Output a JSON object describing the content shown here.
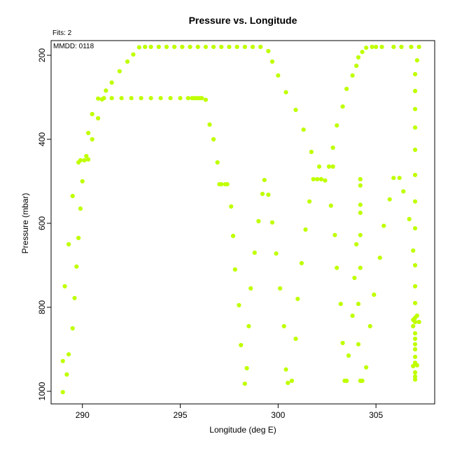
{
  "chart_data": {
    "type": "scatter",
    "title": "Pressure vs. Longitude",
    "xlabel": "Longitude (deg E)",
    "ylabel": "Pressure (mbar)",
    "annotations": [
      "Fits: 2",
      "MMDD: 0118"
    ],
    "xlim": [
      288.4,
      308.0
    ],
    "ylim": [
      1030,
      165
    ],
    "y_reversed": true,
    "x_ticks": [
      290,
      295,
      300,
      305
    ],
    "y_ticks": [
      200,
      400,
      600,
      800,
      1000
    ],
    "point_color": "#bfff00",
    "grid": false,
    "series": [
      {
        "values": [
          [
            289.0,
            1002
          ],
          [
            289.0,
            928
          ],
          [
            289.1,
            750
          ],
          [
            289.2,
            960
          ],
          [
            289.3,
            650
          ],
          [
            289.3,
            912
          ],
          [
            289.5,
            535
          ],
          [
            289.5,
            850
          ],
          [
            289.6,
            778
          ],
          [
            289.7,
            703
          ],
          [
            289.8,
            455
          ],
          [
            289.8,
            635
          ],
          [
            289.9,
            565
          ],
          [
            289.9,
            450
          ],
          [
            290.0,
            500
          ],
          [
            290.1,
            450
          ],
          [
            290.2,
            440
          ],
          [
            290.3,
            385
          ],
          [
            290.3,
            448
          ],
          [
            290.5,
            340
          ],
          [
            290.5,
            400
          ],
          [
            290.8,
            303
          ],
          [
            290.8,
            350
          ],
          [
            291.0,
            305
          ],
          [
            291.1,
            302
          ],
          [
            291.2,
            284
          ],
          [
            291.5,
            265
          ],
          [
            291.5,
            302
          ],
          [
            291.9,
            238
          ],
          [
            292.0,
            302
          ],
          [
            292.3,
            215
          ],
          [
            292.5,
            302
          ],
          [
            292.6,
            198
          ],
          [
            292.9,
            181
          ],
          [
            293.0,
            302
          ],
          [
            293.2,
            180
          ],
          [
            293.5,
            180
          ],
          [
            293.5,
            302
          ],
          [
            293.9,
            180
          ],
          [
            294.0,
            302
          ],
          [
            294.3,
            180
          ],
          [
            294.5,
            302
          ],
          [
            294.7,
            180
          ],
          [
            295.0,
            302
          ],
          [
            295.1,
            180
          ],
          [
            295.4,
            302
          ],
          [
            295.5,
            180
          ],
          [
            295.6,
            302
          ],
          [
            295.7,
            302
          ],
          [
            295.8,
            302
          ],
          [
            295.9,
            302
          ],
          [
            295.9,
            180
          ],
          [
            296.0,
            302
          ],
          [
            296.1,
            302
          ],
          [
            296.3,
            180
          ],
          [
            296.3,
            306
          ],
          [
            296.5,
            365
          ],
          [
            296.7,
            180
          ],
          [
            296.7,
            400
          ],
          [
            296.9,
            455
          ],
          [
            297.0,
            507
          ],
          [
            297.1,
            180
          ],
          [
            297.1,
            507
          ],
          [
            297.3,
            507
          ],
          [
            297.4,
            507
          ],
          [
            297.5,
            180
          ],
          [
            297.6,
            560
          ],
          [
            297.7,
            630
          ],
          [
            297.8,
            710
          ],
          [
            297.9,
            180
          ],
          [
            298.0,
            795
          ],
          [
            298.1,
            890
          ],
          [
            298.3,
            180
          ],
          [
            298.3,
            982
          ],
          [
            298.4,
            945
          ],
          [
            298.5,
            845
          ],
          [
            298.6,
            755
          ],
          [
            298.7,
            180
          ],
          [
            298.8,
            670
          ],
          [
            299.0,
            595
          ],
          [
            299.1,
            180
          ],
          [
            299.2,
            530
          ],
          [
            299.3,
            497
          ],
          [
            299.5,
            532
          ],
          [
            299.5,
            190
          ],
          [
            299.7,
            215
          ],
          [
            299.7,
            598
          ],
          [
            299.9,
            672
          ],
          [
            300.0,
            248
          ],
          [
            300.1,
            755
          ],
          [
            300.3,
            845
          ],
          [
            300.4,
            948
          ],
          [
            300.4,
            288
          ],
          [
            300.5,
            980
          ],
          [
            300.7,
            975
          ],
          [
            300.9,
            875
          ],
          [
            300.9,
            330
          ],
          [
            301.0,
            780
          ],
          [
            301.2,
            695
          ],
          [
            301.3,
            377
          ],
          [
            301.4,
            615
          ],
          [
            301.6,
            548
          ],
          [
            301.7,
            430
          ],
          [
            301.8,
            495
          ],
          [
            302.0,
            495
          ],
          [
            302.1,
            465
          ],
          [
            302.2,
            495
          ],
          [
            302.4,
            498
          ],
          [
            302.6,
            465
          ],
          [
            302.7,
            558
          ],
          [
            302.8,
            420
          ],
          [
            302.8,
            465
          ],
          [
            302.9,
            628
          ],
          [
            303.0,
            706
          ],
          [
            303.0,
            367
          ],
          [
            303.2,
            792
          ],
          [
            303.3,
            885
          ],
          [
            303.3,
            322
          ],
          [
            303.4,
            975
          ],
          [
            303.5,
            975
          ],
          [
            303.5,
            280
          ],
          [
            303.6,
            915
          ],
          [
            303.8,
            820
          ],
          [
            303.8,
            248
          ],
          [
            303.9,
            730
          ],
          [
            304.0,
            650
          ],
          [
            304.0,
            225
          ],
          [
            304.1,
            888
          ],
          [
            304.1,
            792
          ],
          [
            304.2,
            975
          ],
          [
            304.2,
            706
          ],
          [
            304.2,
            628
          ],
          [
            304.2,
            575
          ],
          [
            304.2,
            556
          ],
          [
            304.2,
            510
          ],
          [
            304.2,
            495
          ],
          [
            304.1,
            205
          ],
          [
            304.3,
            192
          ],
          [
            304.3,
            975
          ],
          [
            304.5,
            943
          ],
          [
            304.5,
            182
          ],
          [
            304.7,
            845
          ],
          [
            304.8,
            180
          ],
          [
            304.9,
            770
          ],
          [
            305.0,
            180
          ],
          [
            305.2,
            682
          ],
          [
            305.3,
            180
          ],
          [
            305.4,
            606
          ],
          [
            305.7,
            543
          ],
          [
            305.9,
            492
          ],
          [
            305.9,
            180
          ],
          [
            306.2,
            492
          ],
          [
            306.3,
            180
          ],
          [
            306.4,
            524
          ],
          [
            306.7,
            590
          ],
          [
            306.8,
            180
          ],
          [
            306.9,
            665
          ],
          [
            306.9,
            845
          ],
          [
            307.0,
            612
          ],
          [
            307.0,
            548
          ],
          [
            307.0,
            485
          ],
          [
            307.0,
            425
          ],
          [
            307.0,
            372
          ],
          [
            307.0,
            328
          ],
          [
            307.0,
            285
          ],
          [
            307.0,
            245
          ],
          [
            307.1,
            212
          ],
          [
            307.2,
            180
          ],
          [
            307.0,
            700
          ],
          [
            307.0,
            750
          ],
          [
            307.0,
            790
          ],
          [
            307.1,
            820
          ],
          [
            307.0,
            825
          ],
          [
            306.9,
            830
          ],
          [
            307.0,
            835
          ],
          [
            307.2,
            835
          ],
          [
            307.0,
            862
          ],
          [
            307.0,
            875
          ],
          [
            307.0,
            888
          ],
          [
            307.0,
            900
          ],
          [
            307.0,
            918
          ],
          [
            307.0,
            932
          ],
          [
            306.9,
            940
          ],
          [
            307.1,
            938
          ],
          [
            307.0,
            955
          ],
          [
            307.0,
            965
          ],
          [
            307.0,
            972
          ]
        ]
      }
    ]
  }
}
